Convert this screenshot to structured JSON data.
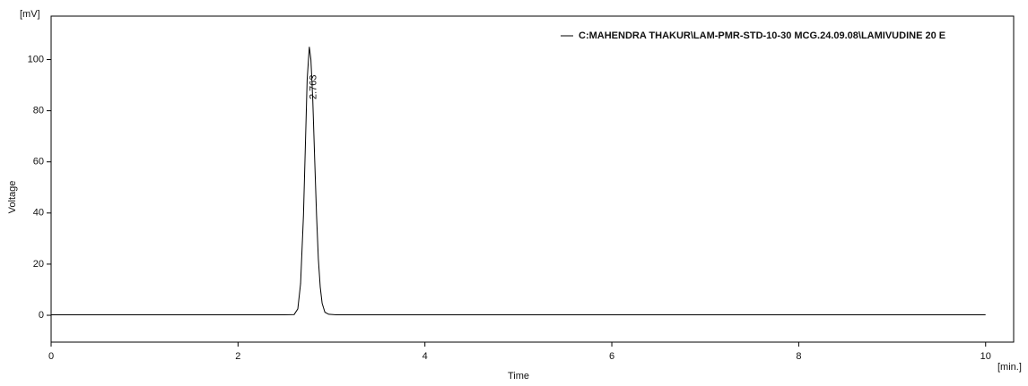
{
  "chart_data": {
    "type": "line",
    "y_unit": "[mV]",
    "x_unit": "[min.]",
    "x_label": "Time",
    "y_label": "Voltage",
    "annotation": "2.763",
    "x": [
      0,
      2.5,
      2.6,
      2.64,
      2.67,
      2.7,
      2.72,
      2.74,
      2.763,
      2.78,
      2.8,
      2.82,
      2.84,
      2.86,
      2.88,
      2.9,
      2.93,
      2.97,
      3.05,
      3.2,
      10
    ],
    "series": [
      {
        "name": "C:MAHENDRA THAKUR\\LAM-PMR-STD-10-30 MCG.24.09.08\\LAMIVUDINE 20 E",
        "color": "#000000",
        "values": [
          0.2,
          0.2,
          0.3,
          2.5,
          12.4,
          39,
          66,
          92,
          105,
          100,
          84,
          61,
          39,
          22,
          11,
          4.7,
          1.2,
          0.4,
          0.2,
          0.2,
          0.2
        ]
      }
    ],
    "xlim": [
      0,
      10.3
    ],
    "ylim": [
      -10.5,
      117
    ],
    "xticks": [
      0,
      2,
      4,
      6,
      8,
      10
    ],
    "yticks": [
      0,
      20,
      40,
      60,
      80,
      100
    ],
    "legend": "top-right"
  }
}
